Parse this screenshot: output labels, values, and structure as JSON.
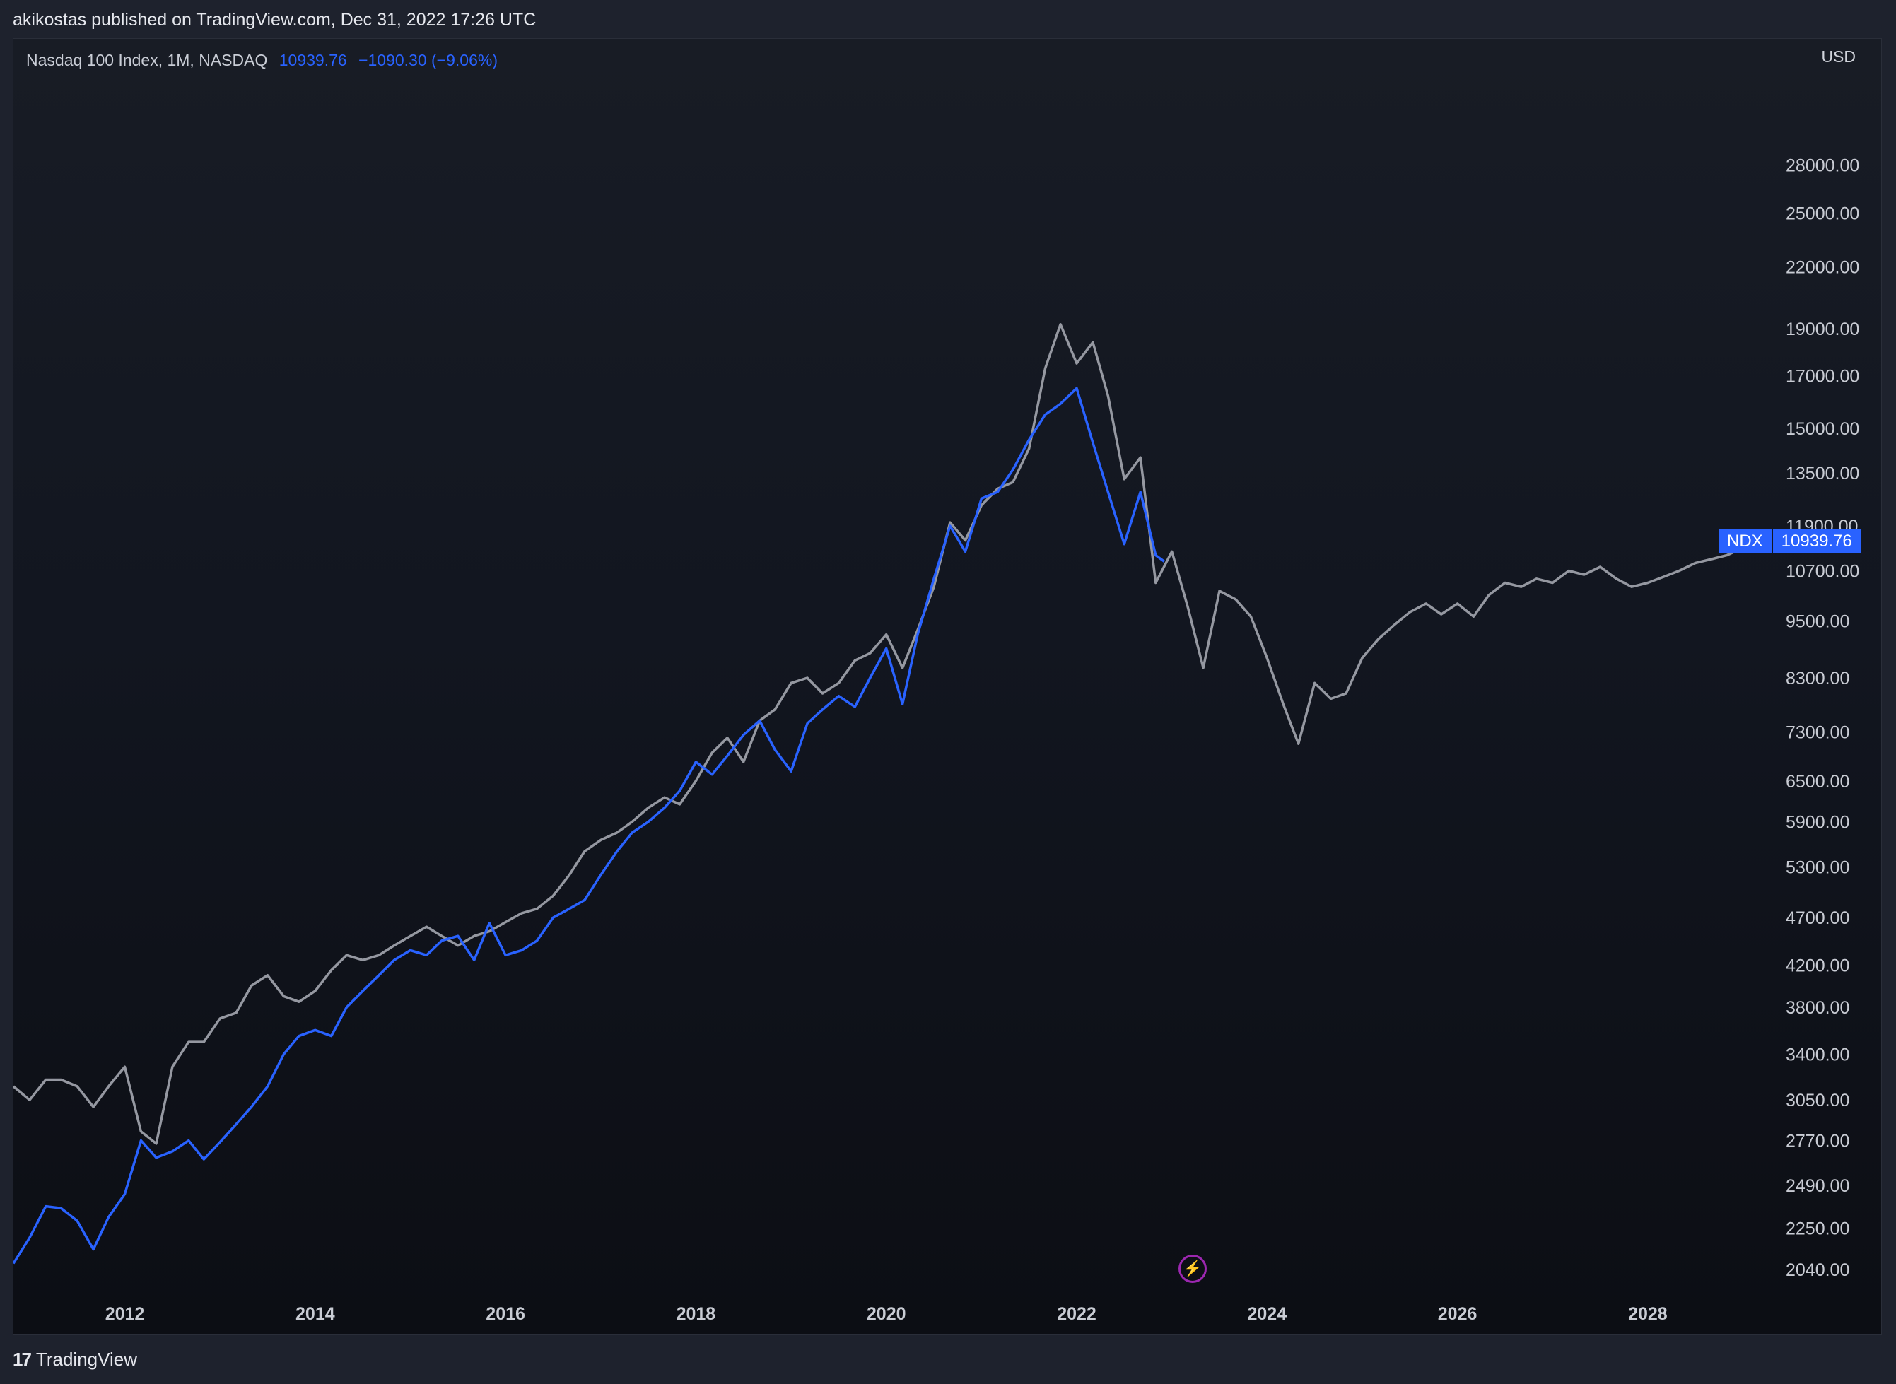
{
  "header": {
    "published_text": "akikostas published on TradingView.com, Dec 31, 2022 17:26 UTC"
  },
  "legend": {
    "symbol_text": "Nasdaq 100 Index, 1M, NASDAQ",
    "last_value": "10939.76",
    "change": "−1090.30 (−9.06%)"
  },
  "axis": {
    "currency": "USD"
  },
  "price_tag": {
    "symbol": "NDX",
    "value": "10939.76"
  },
  "footer": {
    "brand": "TradingView",
    "logo_icon": "tradingview-logo-icon"
  },
  "colors": {
    "ndx_line": "#2962ff",
    "overlay_line": "#9598a1",
    "price_tag_bg": "#2962ff",
    "accent_bolt": "#9c27b0"
  },
  "icons": {
    "bolt": "lightning-bolt-icon"
  },
  "chart_data": {
    "type": "line",
    "y_scale": "log",
    "ylim": [
      1950,
      31000
    ],
    "xlim": [
      2010.83,
      2029.1
    ],
    "y_ticks": [
      28000,
      25000,
      22000,
      19000,
      17000,
      15000,
      13500,
      11900,
      10700,
      9500,
      8300,
      7300,
      6500,
      5900,
      5300,
      4700,
      4200,
      3800,
      3400,
      3050,
      2770,
      2490,
      2250,
      2040
    ],
    "y_tick_labels": [
      "28000.00",
      "25000.00",
      "22000.00",
      "19000.00",
      "17000.00",
      "15000.00",
      "13500.00",
      "11900.00",
      "10700.00",
      "9500.00",
      "8300.00",
      "7300.00",
      "6500.00",
      "5900.00",
      "5300.00",
      "4700.00",
      "4200.00",
      "3800.00",
      "3400.00",
      "3050.00",
      "2770.00",
      "2490.00",
      "2250.00",
      "2040.00"
    ],
    "x_ticks": [
      2012,
      2014,
      2016,
      2018,
      2020,
      2022,
      2024,
      2026,
      2028
    ],
    "x_tick_labels": [
      "2012",
      "2014",
      "2016",
      "2018",
      "2020",
      "2022",
      "2024",
      "2026",
      "2028"
    ],
    "series": [
      {
        "name": "NDX",
        "color": "#2962ff",
        "points": [
          [
            2010.83,
            2070
          ],
          [
            2011.0,
            2200
          ],
          [
            2011.17,
            2370
          ],
          [
            2011.33,
            2360
          ],
          [
            2011.5,
            2290
          ],
          [
            2011.67,
            2140
          ],
          [
            2011.83,
            2310
          ],
          [
            2012.0,
            2440
          ],
          [
            2012.17,
            2770
          ],
          [
            2012.33,
            2660
          ],
          [
            2012.5,
            2700
          ],
          [
            2012.67,
            2770
          ],
          [
            2012.83,
            2650
          ],
          [
            2013.0,
            2760
          ],
          [
            2013.17,
            2880
          ],
          [
            2013.33,
            3000
          ],
          [
            2013.5,
            3150
          ],
          [
            2013.67,
            3400
          ],
          [
            2013.83,
            3550
          ],
          [
            2014.0,
            3600
          ],
          [
            2014.17,
            3550
          ],
          [
            2014.33,
            3800
          ],
          [
            2014.5,
            3950
          ],
          [
            2014.67,
            4100
          ],
          [
            2014.83,
            4250
          ],
          [
            2015.0,
            4350
          ],
          [
            2015.17,
            4300
          ],
          [
            2015.33,
            4450
          ],
          [
            2015.5,
            4500
          ],
          [
            2015.67,
            4250
          ],
          [
            2015.83,
            4640
          ],
          [
            2016.0,
            4300
          ],
          [
            2016.17,
            4350
          ],
          [
            2016.33,
            4450
          ],
          [
            2016.5,
            4700
          ],
          [
            2016.67,
            4800
          ],
          [
            2016.83,
            4900
          ],
          [
            2017.0,
            5200
          ],
          [
            2017.17,
            5500
          ],
          [
            2017.33,
            5750
          ],
          [
            2017.5,
            5900
          ],
          [
            2017.67,
            6100
          ],
          [
            2017.83,
            6350
          ],
          [
            2018.0,
            6800
          ],
          [
            2018.17,
            6600
          ],
          [
            2018.33,
            6900
          ],
          [
            2018.5,
            7250
          ],
          [
            2018.67,
            7500
          ],
          [
            2018.83,
            7000
          ],
          [
            2019.0,
            6650
          ],
          [
            2019.17,
            7450
          ],
          [
            2019.33,
            7700
          ],
          [
            2019.5,
            7950
          ],
          [
            2019.67,
            7750
          ],
          [
            2019.83,
            8300
          ],
          [
            2020.0,
            8900
          ],
          [
            2020.17,
            7800
          ],
          [
            2020.33,
            9200
          ],
          [
            2020.5,
            10500
          ],
          [
            2020.67,
            11900
          ],
          [
            2020.83,
            11200
          ],
          [
            2021.0,
            12700
          ],
          [
            2021.17,
            12900
          ],
          [
            2021.33,
            13600
          ],
          [
            2021.5,
            14600
          ],
          [
            2021.67,
            15500
          ],
          [
            2021.83,
            15900
          ],
          [
            2022.0,
            16500
          ],
          [
            2022.17,
            14500
          ],
          [
            2022.33,
            12900
          ],
          [
            2022.5,
            11400
          ],
          [
            2022.67,
            12900
          ],
          [
            2022.83,
            11100
          ],
          [
            2022.92,
            10939.76
          ]
        ]
      },
      {
        "color": "#9598a1",
        "points": [
          [
            2010.83,
            3150
          ],
          [
            2011.0,
            3050
          ],
          [
            2011.17,
            3200
          ],
          [
            2011.33,
            3200
          ],
          [
            2011.5,
            3150
          ],
          [
            2011.67,
            3000
          ],
          [
            2011.83,
            3150
          ],
          [
            2012.0,
            3300
          ],
          [
            2012.17,
            2830
          ],
          [
            2012.33,
            2750
          ],
          [
            2012.5,
            3300
          ],
          [
            2012.67,
            3500
          ],
          [
            2012.83,
            3500
          ],
          [
            2013.0,
            3700
          ],
          [
            2013.17,
            3750
          ],
          [
            2013.33,
            4000
          ],
          [
            2013.5,
            4100
          ],
          [
            2013.67,
            3900
          ],
          [
            2013.83,
            3850
          ],
          [
            2014.0,
            3950
          ],
          [
            2014.17,
            4150
          ],
          [
            2014.33,
            4300
          ],
          [
            2014.5,
            4250
          ],
          [
            2014.67,
            4300
          ],
          [
            2014.83,
            4400
          ],
          [
            2015.0,
            4500
          ],
          [
            2015.17,
            4600
          ],
          [
            2015.33,
            4500
          ],
          [
            2015.5,
            4400
          ],
          [
            2015.67,
            4500
          ],
          [
            2015.83,
            4550
          ],
          [
            2016.0,
            4650
          ],
          [
            2016.17,
            4750
          ],
          [
            2016.33,
            4800
          ],
          [
            2016.5,
            4950
          ],
          [
            2016.67,
            5200
          ],
          [
            2016.83,
            5500
          ],
          [
            2017.0,
            5650
          ],
          [
            2017.17,
            5750
          ],
          [
            2017.33,
            5900
          ],
          [
            2017.5,
            6100
          ],
          [
            2017.67,
            6250
          ],
          [
            2017.83,
            6150
          ],
          [
            2018.0,
            6500
          ],
          [
            2018.17,
            6950
          ],
          [
            2018.33,
            7200
          ],
          [
            2018.5,
            6800
          ],
          [
            2018.67,
            7500
          ],
          [
            2018.83,
            7700
          ],
          [
            2019.0,
            8200
          ],
          [
            2019.17,
            8300
          ],
          [
            2019.33,
            8000
          ],
          [
            2019.5,
            8200
          ],
          [
            2019.67,
            8650
          ],
          [
            2019.83,
            8800
          ],
          [
            2020.0,
            9200
          ],
          [
            2020.17,
            8500
          ],
          [
            2020.33,
            9300
          ],
          [
            2020.5,
            10300
          ],
          [
            2020.67,
            12000
          ],
          [
            2020.83,
            11500
          ],
          [
            2021.0,
            12500
          ],
          [
            2021.17,
            13000
          ],
          [
            2021.33,
            13200
          ],
          [
            2021.5,
            14300
          ],
          [
            2021.67,
            17300
          ],
          [
            2021.83,
            19200
          ],
          [
            2022.0,
            17500
          ],
          [
            2022.17,
            18400
          ],
          [
            2022.33,
            16200
          ],
          [
            2022.5,
            13300
          ],
          [
            2022.67,
            14000
          ],
          [
            2022.83,
            10400
          ],
          [
            2023.0,
            11200
          ],
          [
            2023.17,
            9800
          ],
          [
            2023.33,
            8500
          ],
          [
            2023.5,
            10200
          ],
          [
            2023.67,
            10000
          ],
          [
            2023.83,
            9600
          ],
          [
            2024.0,
            8700
          ],
          [
            2024.17,
            7800
          ],
          [
            2024.33,
            7100
          ],
          [
            2024.5,
            8200
          ],
          [
            2024.67,
            7900
          ],
          [
            2024.83,
            8000
          ],
          [
            2025.0,
            8700
          ],
          [
            2025.17,
            9100
          ],
          [
            2025.33,
            9400
          ],
          [
            2025.5,
            9700
          ],
          [
            2025.67,
            9900
          ],
          [
            2025.83,
            9650
          ],
          [
            2026.0,
            9900
          ],
          [
            2026.17,
            9600
          ],
          [
            2026.33,
            10100
          ],
          [
            2026.5,
            10400
          ],
          [
            2026.67,
            10300
          ],
          [
            2026.83,
            10500
          ],
          [
            2027.0,
            10400
          ],
          [
            2027.17,
            10700
          ],
          [
            2027.33,
            10600
          ],
          [
            2027.5,
            10800
          ],
          [
            2027.67,
            10500
          ],
          [
            2027.83,
            10300
          ],
          [
            2028.0,
            10400
          ],
          [
            2028.17,
            10550
          ],
          [
            2028.33,
            10700
          ],
          [
            2028.5,
            10900
          ],
          [
            2028.67,
            11000
          ],
          [
            2028.83,
            11100
          ],
          [
            2029.0,
            11300
          ]
        ]
      }
    ],
    "grid": false,
    "legend": "top-left"
  }
}
